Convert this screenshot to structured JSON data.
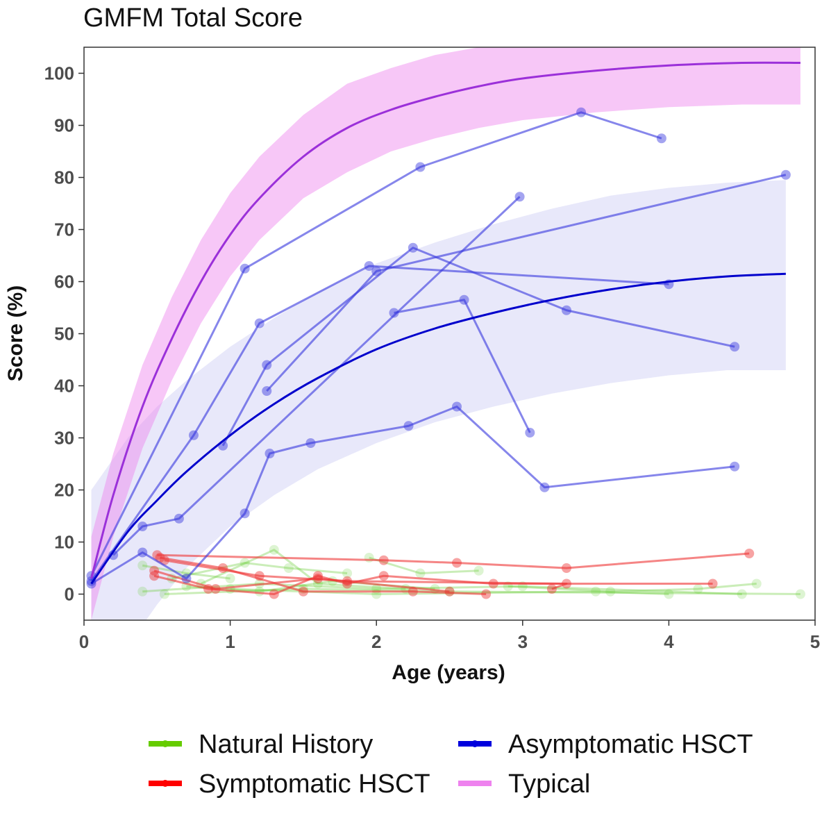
{
  "chart_data": {
    "type": "line",
    "title": "GMFM Total Score",
    "xlabel": "Age (years)",
    "ylabel": "Score (%)",
    "xlim": [
      0,
      5
    ],
    "ylim": [
      -5,
      105
    ],
    "xticks": [
      0,
      1,
      2,
      3,
      4,
      5
    ],
    "yticks": [
      0,
      10,
      20,
      30,
      40,
      50,
      60,
      70,
      80,
      90,
      100
    ],
    "grid": false,
    "legend_position": "bottom",
    "legend": [
      {
        "name": "Natural History",
        "color": "#66cc00"
      },
      {
        "name": "Symptomatic HSCT",
        "color": "#ff0000"
      },
      {
        "name": "Asymptomatic HSCT",
        "color": "#0000dd"
      },
      {
        "name": "Typical",
        "color": "#ee82ee"
      }
    ],
    "typical_fit": {
      "color": "#9b30d9",
      "band_color": "#ee82ee",
      "x": [
        0.05,
        0.2,
        0.4,
        0.6,
        0.8,
        1.0,
        1.2,
        1.5,
        1.8,
        2.1,
        2.4,
        2.7,
        3.0,
        3.5,
        4.0,
        4.5,
        4.9
      ],
      "y": [
        3,
        19,
        36,
        49,
        60,
        69,
        76,
        84,
        89.5,
        93,
        95.5,
        97.5,
        99,
        100.5,
        101.5,
        102,
        102
      ],
      "lower": [
        -5,
        11,
        28,
        41,
        52,
        61,
        68,
        76,
        81,
        85,
        87.5,
        89.5,
        91,
        92.5,
        93.5,
        94,
        94
      ],
      "upper": [
        11,
        27,
        44,
        57,
        68,
        77,
        84,
        92,
        98,
        101,
        103.5,
        105,
        106,
        107,
        108,
        108.5,
        108.5
      ]
    },
    "asymptomatic_fit": {
      "color": "#0000cc",
      "band_color": "#ccccf5",
      "x": [
        0.05,
        0.3,
        0.5,
        0.7,
        1.0,
        1.3,
        1.6,
        2.0,
        2.4,
        2.8,
        3.2,
        3.6,
        4.0,
        4.4,
        4.8
      ],
      "y": [
        2,
        12,
        18,
        23.5,
        30.5,
        36.5,
        41.5,
        47,
        51,
        54,
        56.5,
        58.5,
        60,
        61,
        61.5
      ],
      "lower": [
        -20,
        -10,
        -2,
        5,
        13,
        19,
        24,
        29,
        33,
        36,
        38.5,
        40.5,
        42,
        43,
        43
      ],
      "upper": [
        20,
        30,
        36,
        41,
        47.5,
        53,
        58,
        63.5,
        67.5,
        71,
        74,
        76.5,
        78,
        79,
        79.5
      ]
    },
    "series": [
      {
        "name": "Asymptomatic HSCT",
        "color": "#3535dd",
        "points": [
          [
            0.05,
            3.5
          ],
          [
            1.1,
            62.5
          ],
          [
            2.3,
            82
          ],
          [
            3.4,
            92.5
          ],
          [
            3.95,
            87.5
          ]
        ]
      },
      {
        "name": "Asymptomatic HSCT",
        "color": "#3535dd",
        "points": [
          [
            0.05,
            2.5
          ],
          [
            0.75,
            30.5
          ],
          [
            1.2,
            52
          ],
          [
            1.95,
            63
          ],
          [
            4.0,
            59.5
          ]
        ]
      },
      {
        "name": "Asymptomatic HSCT",
        "color": "#3535dd",
        "points": [
          [
            1.25,
            39
          ],
          [
            2.0,
            62
          ],
          [
            4.8,
            80.5
          ]
        ]
      },
      {
        "name": "Asymptomatic HSCT",
        "color": "#3535dd",
        "points": [
          [
            0.95,
            28.5
          ],
          [
            1.25,
            44
          ],
          [
            2.25,
            66.5
          ],
          [
            3.3,
            54.5
          ],
          [
            4.45,
            47.5
          ]
        ]
      },
      {
        "name": "Asymptomatic HSCT",
        "color": "#3535dd",
        "points": [
          [
            0.2,
            7.5
          ],
          [
            0.4,
            13
          ],
          [
            0.65,
            14.5
          ],
          [
            2.98,
            76.3
          ]
        ]
      },
      {
        "name": "Asymptomatic HSCT",
        "color": "#3535dd",
        "points": [
          [
            2.12,
            54
          ],
          [
            2.6,
            56.5
          ],
          [
            3.05,
            31
          ]
        ]
      },
      {
        "name": "Asymptomatic HSCT",
        "color": "#3535dd",
        "points": [
          [
            0.05,
            2
          ],
          [
            0.4,
            8
          ],
          [
            0.7,
            3
          ],
          [
            1.1,
            15.5
          ],
          [
            1.27,
            27
          ],
          [
            1.55,
            29
          ],
          [
            2.22,
            32.3
          ],
          [
            2.55,
            36
          ],
          [
            3.15,
            20.5
          ],
          [
            4.45,
            24.5
          ]
        ]
      },
      {
        "name": "Symptomatic HSCT",
        "color": "#ee3333",
        "points": [
          [
            0.5,
            7.5
          ],
          [
            2.05,
            6.5
          ],
          [
            2.55,
            6
          ],
          [
            3.3,
            5
          ],
          [
            4.55,
            7.8
          ]
        ]
      },
      {
        "name": "Symptomatic HSCT",
        "color": "#ee3333",
        "points": [
          [
            0.48,
            3.5
          ],
          [
            0.85,
            1
          ],
          [
            1.3,
            0
          ],
          [
            1.6,
            3.5
          ],
          [
            1.8,
            2
          ],
          [
            2.05,
            3.5
          ],
          [
            2.8,
            2
          ],
          [
            4.3,
            2
          ]
        ]
      },
      {
        "name": "Symptomatic HSCT",
        "color": "#ee3333",
        "points": [
          [
            0.52,
            7
          ],
          [
            0.95,
            5
          ],
          [
            1.5,
            0.5
          ],
          [
            2.25,
            0.5
          ],
          [
            2.75,
            0
          ]
        ]
      },
      {
        "name": "Symptomatic HSCT",
        "color": "#ee3333",
        "points": [
          [
            0.55,
            6.5
          ],
          [
            1.2,
            3.5
          ],
          [
            1.8,
            2.5
          ],
          [
            3.3,
            2
          ],
          [
            3.2,
            1
          ]
        ]
      },
      {
        "name": "Symptomatic HSCT",
        "color": "#ee3333",
        "points": [
          [
            0.48,
            4.5
          ],
          [
            0.9,
            1
          ],
          [
            1.6,
            3
          ],
          [
            2.5,
            0.5
          ]
        ]
      },
      {
        "name": "Natural History",
        "color": "#66cc33",
        "points": [
          [
            0.4,
            0.5
          ],
          [
            1.2,
            2
          ],
          [
            2.0,
            1
          ],
          [
            3.0,
            1.5
          ],
          [
            4.5,
            0
          ]
        ]
      },
      {
        "name": "Natural History",
        "color": "#66cc33",
        "points": [
          [
            0.55,
            0
          ],
          [
            1.5,
            1
          ],
          [
            2.5,
            0.5
          ],
          [
            4.9,
            0
          ]
        ]
      },
      {
        "name": "Natural History",
        "color": "#66cc33",
        "points": [
          [
            0.6,
            3
          ],
          [
            1.1,
            6
          ],
          [
            1.4,
            5
          ],
          [
            1.8,
            4
          ]
        ]
      },
      {
        "name": "Natural History",
        "color": "#66cc33",
        "points": [
          [
            1.95,
            7
          ],
          [
            2.3,
            4
          ],
          [
            2.7,
            4.5
          ]
        ]
      },
      {
        "name": "Natural History",
        "color": "#66cc33",
        "points": [
          [
            0.8,
            2
          ],
          [
            1.3,
            8.5
          ],
          [
            1.6,
            2
          ],
          [
            2.2,
            1
          ]
        ]
      },
      {
        "name": "Natural History",
        "color": "#66cc33",
        "points": [
          [
            0.4,
            5.5
          ],
          [
            0.7,
            4
          ],
          [
            1.0,
            3
          ]
        ]
      },
      {
        "name": "Natural History",
        "color": "#66cc33",
        "points": [
          [
            1.0,
            1
          ],
          [
            2.0,
            0
          ],
          [
            3.5,
            0.5
          ],
          [
            4.0,
            0
          ]
        ]
      },
      {
        "name": "Natural History",
        "color": "#66cc33",
        "points": [
          [
            0.7,
            1.5
          ],
          [
            1.2,
            0.5
          ],
          [
            1.7,
            2.5
          ],
          [
            2.4,
            1
          ]
        ]
      },
      {
        "name": "Natural History",
        "color": "#66cc33",
        "points": [
          [
            2.9,
            1.5
          ],
          [
            3.6,
            0.5
          ],
          [
            4.2,
            1
          ],
          [
            4.6,
            2
          ]
        ]
      }
    ]
  }
}
